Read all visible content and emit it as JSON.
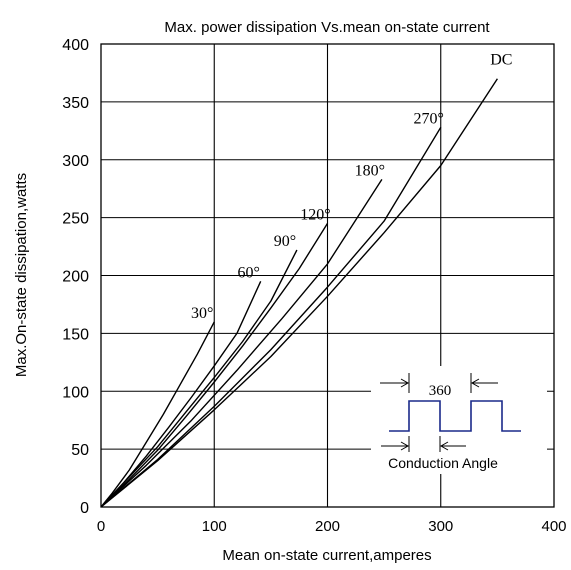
{
  "chart_data": {
    "type": "line",
    "title": "Max. power dissipation Vs.mean on-state current",
    "xlabel": "Mean on-state current,amperes",
    "ylabel": "Max.On-state dissipation,watts",
    "xlim": [
      0,
      400
    ],
    "ylim": [
      0,
      400
    ],
    "x_ticks": [
      "0",
      "100",
      "200",
      "300",
      "400"
    ],
    "y_ticks": [
      "0",
      "50",
      "100",
      "150",
      "200",
      "250",
      "300",
      "350",
      "400"
    ],
    "grid": "major",
    "series": [
      {
        "name": "30°",
        "x": [
          0,
          10,
          25,
          40,
          55,
          70,
          85,
          100
        ],
        "y": [
          0,
          12,
          32,
          56,
          80,
          106,
          132,
          160
        ]
      },
      {
        "name": "60°",
        "x": [
          0,
          20,
          40,
          60,
          80,
          100,
          120,
          141
        ],
        "y": [
          0,
          21,
          44,
          69,
          95,
          122,
          150,
          195
        ]
      },
      {
        "name": "90°",
        "x": [
          0,
          25,
          50,
          75,
          100,
          125,
          150,
          173
        ],
        "y": [
          0,
          26,
          52,
          82,
          112,
          143,
          178,
          222
        ]
      },
      {
        "name": "120°",
        "x": [
          0,
          25,
          50,
          75,
          100,
          125,
          150,
          175,
          200
        ],
        "y": [
          0,
          24,
          49,
          78,
          108,
          139,
          172,
          206,
          245
        ]
      },
      {
        "name": "180°",
        "x": [
          0,
          40,
          80,
          120,
          160,
          200,
          248
        ],
        "y": [
          0,
          36,
          75,
          118,
          163,
          210,
          283
        ]
      },
      {
        "name": "270°",
        "x": [
          0,
          50,
          100,
          150,
          200,
          250,
          300
        ],
        "y": [
          0,
          41,
          87,
          136,
          190,
          247,
          328
        ]
      },
      {
        "name": "DC",
        "x": [
          0,
          50,
          100,
          150,
          200,
          250,
          300,
          350
        ],
        "y": [
          0,
          40,
          84,
          130,
          182,
          237,
          295,
          370
        ]
      }
    ],
    "annotations": [
      "30°",
      "60°",
      "90°",
      "120°",
      "180°",
      "270°",
      "DC"
    ],
    "inset": {
      "period_label": "360",
      "conduction_label": "Conduction Angle"
    },
    "colors": {
      "curves": "#000000",
      "grid": "#000000",
      "waveform": "#1a2a8a"
    }
  }
}
